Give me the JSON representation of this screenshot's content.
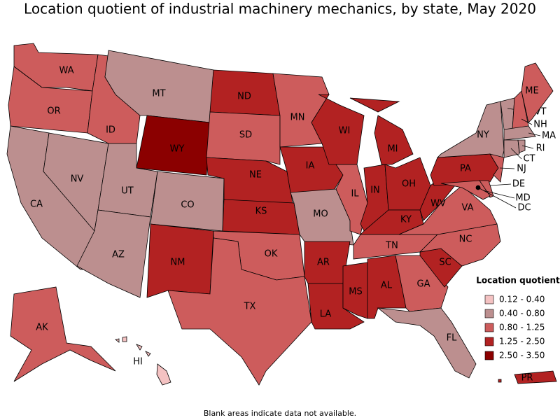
{
  "title": "Location quotient of industrial machinery mechanics, by state, May 2020",
  "note": "Blank areas indicate data not available.",
  "legend": {
    "title": "Location quotient",
    "items": [
      {
        "label": "0.12 - 0.40",
        "color": "#f4c2c2"
      },
      {
        "label": "0.40 - 0.80",
        "color": "#bc8f8f"
      },
      {
        "label": "0.80 - 1.25",
        "color": "#cd5c5c"
      },
      {
        "label": "1.25 - 2.50",
        "color": "#b22222"
      },
      {
        "label": "2.50 - 3.50",
        "color": "#8b0000"
      }
    ]
  },
  "states": [
    {
      "label": "WA",
      "color": "#cd5c5c"
    },
    {
      "label": "OR",
      "color": "#cd5c5c"
    },
    {
      "label": "CA",
      "color": "#bc8f8f"
    },
    {
      "label": "NV",
      "color": "#bc8f8f"
    },
    {
      "label": "ID",
      "color": "#cd5c5c"
    },
    {
      "label": "MT",
      "color": "#bc8f8f"
    },
    {
      "label": "WY",
      "color": "#8b0000"
    },
    {
      "label": "UT",
      "color": "#bc8f8f"
    },
    {
      "label": "AZ",
      "color": "#bc8f8f"
    },
    {
      "label": "CO",
      "color": "#bc8f8f"
    },
    {
      "label": "NM",
      "color": "#b22222"
    },
    {
      "label": "ND",
      "color": "#b22222"
    },
    {
      "label": "SD",
      "color": "#cd5c5c"
    },
    {
      "label": "NE",
      "color": "#b22222"
    },
    {
      "label": "KS",
      "color": "#b22222"
    },
    {
      "label": "OK",
      "color": "#cd5c5c"
    },
    {
      "label": "TX",
      "color": "#cd5c5c"
    },
    {
      "label": "MN",
      "color": "#cd5c5c"
    },
    {
      "label": "IA",
      "color": "#b22222"
    },
    {
      "label": "MO",
      "color": "#bc8f8f"
    },
    {
      "label": "AR",
      "color": "#b22222"
    },
    {
      "label": "LA",
      "color": "#b22222"
    },
    {
      "label": "WI",
      "color": "#b22222"
    },
    {
      "label": "IL",
      "color": "#cd5c5c"
    },
    {
      "label": "MI",
      "color": "#b22222"
    },
    {
      "label": "IN",
      "color": "#b22222"
    },
    {
      "label": "OH",
      "color": "#b22222"
    },
    {
      "label": "KY",
      "color": "#b22222"
    },
    {
      "label": "TN",
      "color": "#cd5c5c"
    },
    {
      "label": "MS",
      "color": "#b22222"
    },
    {
      "label": "AL",
      "color": "#b22222"
    },
    {
      "label": "GA",
      "color": "#cd5c5c"
    },
    {
      "label": "FL",
      "color": "#bc8f8f"
    },
    {
      "label": "SC",
      "color": "#b22222"
    },
    {
      "label": "NC",
      "color": "#cd5c5c"
    },
    {
      "label": "VA",
      "color": "#cd5c5c"
    },
    {
      "label": "WV",
      "color": "#b22222"
    },
    {
      "label": "PA",
      "color": "#b22222"
    },
    {
      "label": "NY",
      "color": "#bc8f8f"
    },
    {
      "label": "NJ",
      "color": "#cd5c5c"
    },
    {
      "label": "DE",
      "color": "#cd5c5c"
    },
    {
      "label": "MD",
      "color": "#cd5c5c"
    },
    {
      "label": "DC",
      "color": "#000000"
    },
    {
      "label": "VT",
      "color": "#bc8f8f"
    },
    {
      "label": "NH",
      "color": "#cd5c5c"
    },
    {
      "label": "ME",
      "color": "#cd5c5c"
    },
    {
      "label": "MA",
      "color": "#bc8f8f"
    },
    {
      "label": "CT",
      "color": "#bc8f8f"
    },
    {
      "label": "RI",
      "color": "#bc8f8f"
    },
    {
      "label": "AK",
      "color": "#cd5c5c"
    },
    {
      "label": "HI",
      "color": "#f4c2c2"
    },
    {
      "label": "PR",
      "color": "#b22222"
    }
  ]
}
